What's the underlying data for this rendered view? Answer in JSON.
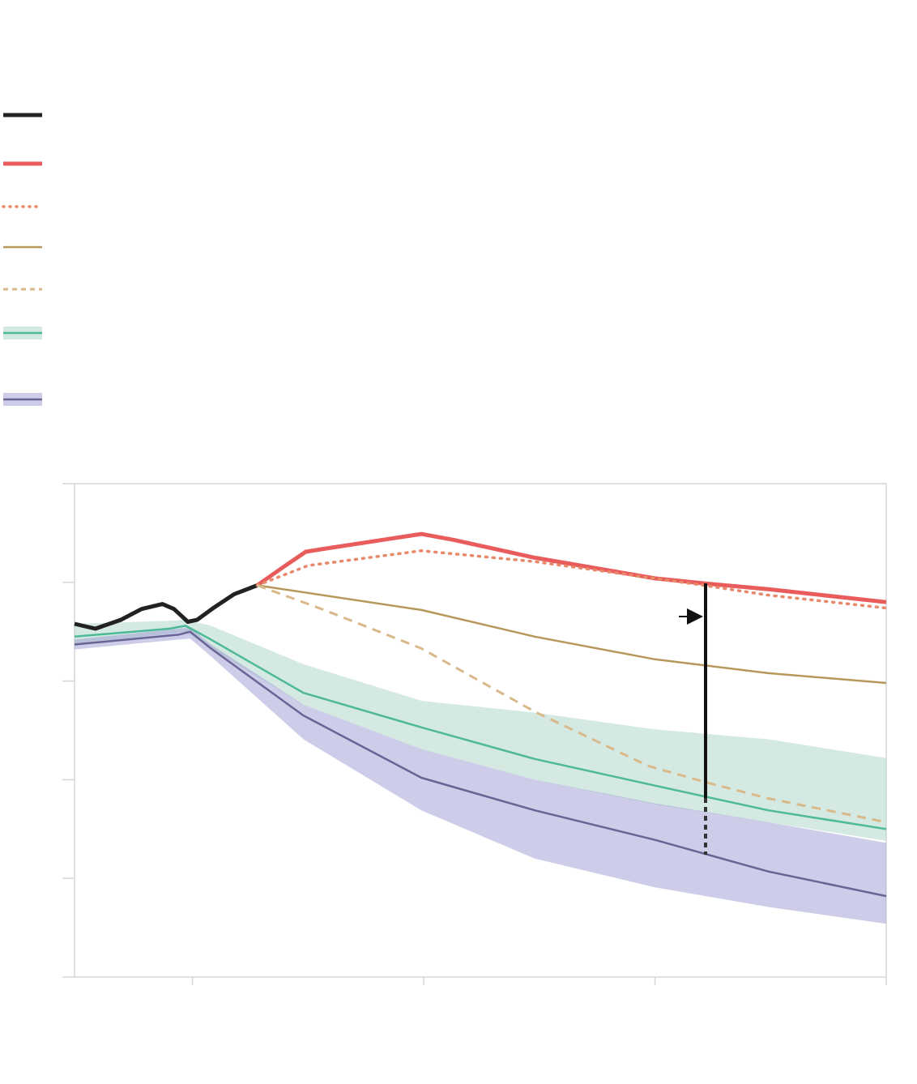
{
  "chart_data": {
    "type": "line",
    "xlim": [
      -0.51,
      3
    ],
    "xticks": [
      0,
      1,
      2,
      3
    ],
    "ylim": [
      0,
      5
    ],
    "yticks": [
      0,
      1,
      2,
      3,
      4,
      5
    ],
    "series": [
      {
        "color": "#222222",
        "width": 5,
        "dash": "none",
        "x": [
          -0.51,
          -0.42,
          -0.31,
          -0.22,
          -0.13,
          -0.08,
          -0.02,
          0.02,
          0.09,
          0.18,
          0.28
        ],
        "values": [
          3.58,
          3.53,
          3.62,
          3.73,
          3.78,
          3.73,
          3.6,
          3.62,
          3.74,
          3.88,
          3.97
        ]
      },
      {
        "color": "#e85c5c",
        "width": 5,
        "dash": "none",
        "x": [
          0.28,
          0.39,
          0.49,
          0.57,
          0.85,
          0.99,
          1.13,
          1.48,
          2,
          2.21,
          2.49,
          3
        ],
        "values": [
          3.97,
          4.15,
          4.31,
          4.34,
          4.44,
          4.49,
          4.43,
          4.25,
          4.04,
          3.99,
          3.93,
          3.8
        ]
      },
      {
        "color": "#e8896a",
        "width": 3.5,
        "dash": "dotted",
        "x": [
          0.28,
          0.5,
          0.99,
          1.48,
          2,
          2.21,
          2.49,
          3
        ],
        "values": [
          3.97,
          4.17,
          4.32,
          4.21,
          4.04,
          3.97,
          3.87,
          3.74
        ]
      },
      {
        "color": "#b8975a",
        "width": 2.5,
        "dash": "none",
        "x": [
          0.28,
          0.99,
          1.48,
          2,
          2.49,
          3
        ],
        "values": [
          3.97,
          3.72,
          3.45,
          3.22,
          3.08,
          2.98
        ]
      },
      {
        "color": "#d9b98a",
        "width": 3,
        "dash": "dashed",
        "x": [
          0.28,
          0.57,
          0.99,
          1.48,
          1.97,
          2.21,
          2.49,
          3
        ],
        "values": [
          3.97,
          3.72,
          3.33,
          2.69,
          2.14,
          1.98,
          1.81,
          1.57
        ]
      },
      {
        "color": "#4db89a",
        "width": 2.5,
        "dash": "none",
        "x": [
          -0.51,
          -0.1,
          -0.03,
          0.08,
          0.48,
          0.99,
          1.48,
          2,
          2.49,
          3
        ],
        "values": [
          3.45,
          3.53,
          3.56,
          3.42,
          2.88,
          2.53,
          2.21,
          1.94,
          1.69,
          1.5
        ],
        "band": {
          "color": "#a8d3c3",
          "upper": [
            3.58,
            3.61,
            3.62,
            3.56,
            3.17,
            2.8,
            2.68,
            2.51,
            2.41,
            2.22
          ],
          "lower": [
            3.37,
            3.48,
            3.5,
            3.33,
            2.76,
            2.31,
            2,
            1.75,
            1.57,
            1.38
          ]
        }
      },
      {
        "color": "#6a6496",
        "width": 2.5,
        "dash": "none",
        "x": [
          -0.51,
          -0.06,
          -0.01,
          0.08,
          0.48,
          0.99,
          1.48,
          2,
          2.49,
          3
        ],
        "values": [
          3.37,
          3.47,
          3.5,
          3.33,
          2.65,
          2.02,
          1.69,
          1.39,
          1.07,
          0.82
        ],
        "band": {
          "color": "#9c9bd3",
          "upper": [
            3.42,
            3.53,
            3.54,
            3.37,
            2.76,
            2.31,
            2,
            1.76,
            1.57,
            1.36
          ],
          "lower": [
            3.32,
            3.42,
            3.43,
            3.25,
            2.41,
            1.69,
            1.2,
            0.91,
            0.71,
            0.54
          ]
        }
      }
    ]
  }
}
